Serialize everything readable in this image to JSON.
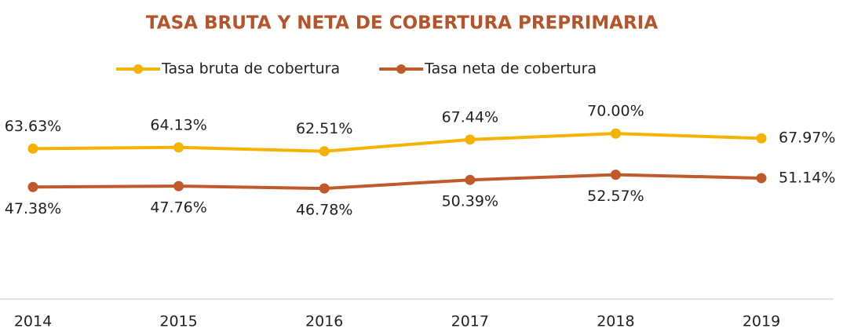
{
  "chart_data": {
    "type": "line",
    "title": "TASA BRUTA Y NETA DE COBERTURA PREPRIMARIA",
    "categories": [
      "2014",
      "2015",
      "2016",
      "2017",
      "2018",
      "2019"
    ],
    "series": [
      {
        "name": "Tasa bruta de cobertura",
        "color": "#f5b300",
        "values": [
          63.63,
          64.13,
          62.51,
          67.44,
          70.0,
          67.97
        ],
        "value_labels": [
          "63.63%",
          "64.13%",
          "62.51%",
          "67.44%",
          "70.00%",
          "67.97%"
        ]
      },
      {
        "name": "Tasa neta de cobertura",
        "color": "#c15a2a",
        "values": [
          47.38,
          47.76,
          46.78,
          50.39,
          52.57,
          51.14
        ],
        "value_labels": [
          "47.38%",
          "47.76%",
          "46.78%",
          "50.39%",
          "52.57%",
          "51.14%"
        ]
      }
    ],
    "ylim": [
      0,
      80
    ],
    "legend": "top"
  }
}
